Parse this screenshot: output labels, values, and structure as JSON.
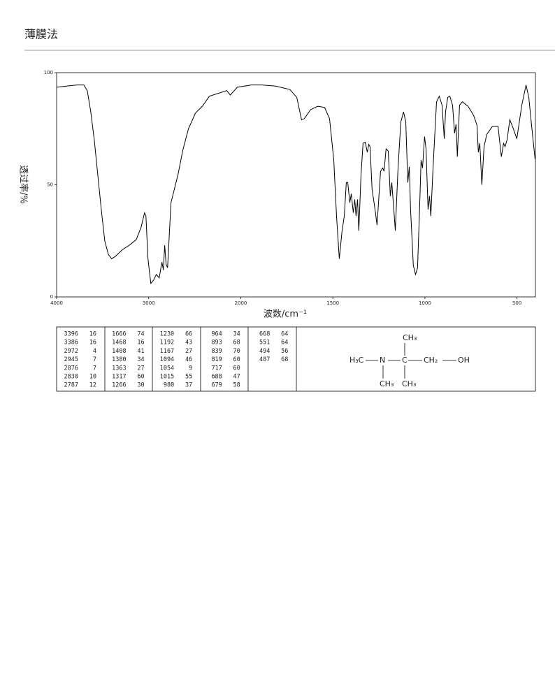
{
  "header": {
    "title": "薄膜法"
  },
  "chart_data": {
    "type": "line",
    "xlabel": "波数/cm⁻¹",
    "ylabel": "透过率/%",
    "xlim": [
      4000,
      400
    ],
    "ylim": [
      0,
      100
    ],
    "xticks": [
      4000,
      3000,
      2000,
      1500,
      1000,
      500
    ],
    "yticks": [
      0,
      50,
      100
    ],
    "x_scale_split": {
      "at": 2000,
      "factor": 2
    },
    "grid": false,
    "x": [
      4000,
      3894,
      3780,
      3705,
      3667,
      3629,
      3591,
      3553,
      3515,
      3477,
      3439,
      3402,
      3364,
      3288,
      3212,
      3136,
      3083,
      3045,
      3030,
      3008,
      2977,
      2947,
      2917,
      2886,
      2856,
      2841,
      2826,
      2811,
      2795,
      2758,
      2682,
      2629,
      2568,
      2492,
      2417,
      2341,
      2227,
      2152,
      2114,
      2038,
      1943,
      1886,
      1810,
      1734,
      1696,
      1670,
      1655,
      1621,
      1583,
      1545,
      1518,
      1495,
      1480,
      1465,
      1450,
      1438,
      1427,
      1419,
      1408,
      1400,
      1389,
      1381,
      1374,
      1366,
      1359,
      1347,
      1336,
      1324,
      1313,
      1305,
      1298,
      1287,
      1271,
      1260,
      1241,
      1229,
      1222,
      1211,
      1199,
      1188,
      1180,
      1169,
      1161,
      1146,
      1131,
      1116,
      1104,
      1093,
      1085,
      1078,
      1063,
      1051,
      1040,
      1028,
      1021,
      1013,
      1002,
      994,
      983,
      975,
      968,
      956,
      937,
      922,
      907,
      895,
      888,
      876,
      865,
      850,
      839,
      831,
      824,
      812,
      797,
      766,
      736,
      717,
      710,
      702,
      691,
      679,
      664,
      634,
      603,
      585,
      573,
      565,
      554,
      539,
      520,
      501,
      474,
      451,
      436,
      421,
      402
    ],
    "series": [
      {
        "color": "#000000",
        "values": [
          93.5,
          94,
          94.5,
          94.5,
          92,
          82.5,
          70,
          54.5,
          39,
          25,
          19,
          17,
          18,
          21,
          23,
          25.5,
          31,
          37.5,
          36,
          17,
          6,
          7.5,
          10,
          8.5,
          15.5,
          12,
          23,
          14.5,
          13,
          42,
          54.5,
          65.5,
          75,
          82,
          85,
          89.5,
          91,
          92,
          90,
          93.5,
          94.5,
          94.5,
          94,
          92.5,
          89,
          79,
          79.5,
          83.5,
          85,
          84.5,
          79.5,
          61,
          36,
          17,
          29.5,
          36,
          51,
          51,
          42,
          46,
          37.5,
          43.5,
          36,
          43.5,
          29.5,
          54.5,
          68.5,
          69,
          64.5,
          68,
          67,
          48,
          39,
          32,
          56,
          57.5,
          56,
          66,
          65,
          45,
          51,
          39,
          29.5,
          57.5,
          78,
          82.5,
          78,
          51,
          58,
          39,
          14,
          10,
          13,
          42,
          61,
          57.5,
          71.5,
          66,
          39,
          45,
          36,
          57.5,
          87,
          89.5,
          85.5,
          70.5,
          82.5,
          89,
          89.5,
          85.5,
          73,
          77,
          62.5,
          85.5,
          87,
          85,
          81,
          76.5,
          64.5,
          68.5,
          50,
          67,
          72.5,
          76,
          76,
          62.5,
          68.5,
          67,
          70,
          79,
          75,
          70.5,
          85.5,
          94.5,
          89,
          76.5,
          61.5
        ]
      }
    ]
  },
  "table": {
    "columns": [
      [
        [
          3396,
          16
        ],
        [
          3386,
          16
        ],
        [
          2972,
          4
        ],
        [
          2945,
          7
        ],
        [
          2876,
          7
        ],
        [
          2830,
          10
        ],
        [
          2787,
          12
        ]
      ],
      [
        [
          1666,
          74
        ],
        [
          1468,
          16
        ],
        [
          1408,
          41
        ],
        [
          1380,
          34
        ],
        [
          1363,
          27
        ],
        [
          1317,
          60
        ],
        [
          1266,
          30
        ]
      ],
      [
        [
          1230,
          66
        ],
        [
          1192,
          43
        ],
        [
          1167,
          27
        ],
        [
          1094,
          46
        ],
        [
          1054,
          9
        ],
        [
          1015,
          55
        ],
        [
          980,
          37
        ]
      ],
      [
        [
          964,
          34
        ],
        [
          893,
          68
        ],
        [
          839,
          70
        ],
        [
          819,
          60
        ],
        [
          717,
          60
        ],
        [
          688,
          47
        ],
        [
          679,
          58
        ]
      ],
      [
        [
          668,
          64
        ],
        [
          551,
          64
        ],
        [
          494,
          56
        ],
        [
          487,
          68
        ]
      ]
    ]
  },
  "structure": {
    "atoms": [
      "CH₃",
      "H₃C",
      "N",
      "C",
      "CH₂",
      "OH",
      "CH₃",
      "CH₃"
    ]
  }
}
